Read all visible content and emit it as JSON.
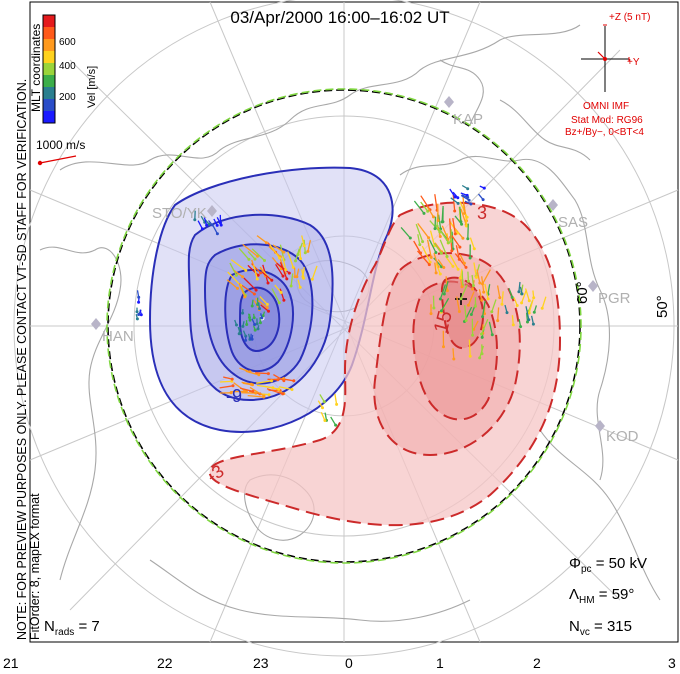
{
  "title": "03/Apr/2000  16:00–16:02  UT",
  "side_note_line1": "NOTE: FOR PREVIEW PURPOSES ONLY. PLEASE CONTACT VT-SD STAFF FOR VERIFICATION.",
  "side_note_line2": "FitOrder: 8,  mapEX format",
  "mlt_label": "MLT coordinates",
  "colorbar": {
    "title": "Vel [m/s]",
    "ticks": [
      "600",
      "400",
      "200"
    ],
    "colors": [
      "#e41a1c",
      "#ff5a1a",
      "#ff9a1e",
      "#ffd21e",
      "#9ad43b",
      "#3cae4a",
      "#2a7f8f",
      "#2a4dc8",
      "#1a1aff"
    ]
  },
  "scale_vector_label": "1000 m/s",
  "imf": {
    "bz_label": "+Z (5 nT)",
    "by_label": "+Y",
    "source": "OMNI IMF",
    "model": "Stat Mod: RG96",
    "condition": "Bz+/By−, 0<BT<4"
  },
  "stations": [
    "KAP",
    "SAS",
    "PGR",
    "KOD",
    "STO/YK",
    "HAN"
  ],
  "latitude_labels": [
    "60°",
    "50°"
  ],
  "contour_labels": [
    "-9",
    "3",
    "15",
    "-3"
  ],
  "stats": {
    "phi_symbol": "Φ",
    "phi_sub": "pc",
    "phi_value": "= 50 kV",
    "lambda_symbol": "Λ",
    "lambda_sub": "HM",
    "lambda_value": "= 59°",
    "nvc_symbol": "N",
    "nvc_sub": "vc",
    "nvc_value": "= 315",
    "nrads_symbol": "N",
    "nrads_sub": "rads",
    "nrads_value": "= 7"
  },
  "mlt_hours": [
    "21",
    "22",
    "23",
    "0",
    "1",
    "2",
    "3"
  ],
  "colors": {
    "negative_cell": "#2a2fb8",
    "positive_cell": "#cc2a2a",
    "negative_fill": "#8888dd",
    "positive_fill": "#ee9999",
    "imf_red": "#e00000",
    "grid": "#bbbbbb"
  }
}
